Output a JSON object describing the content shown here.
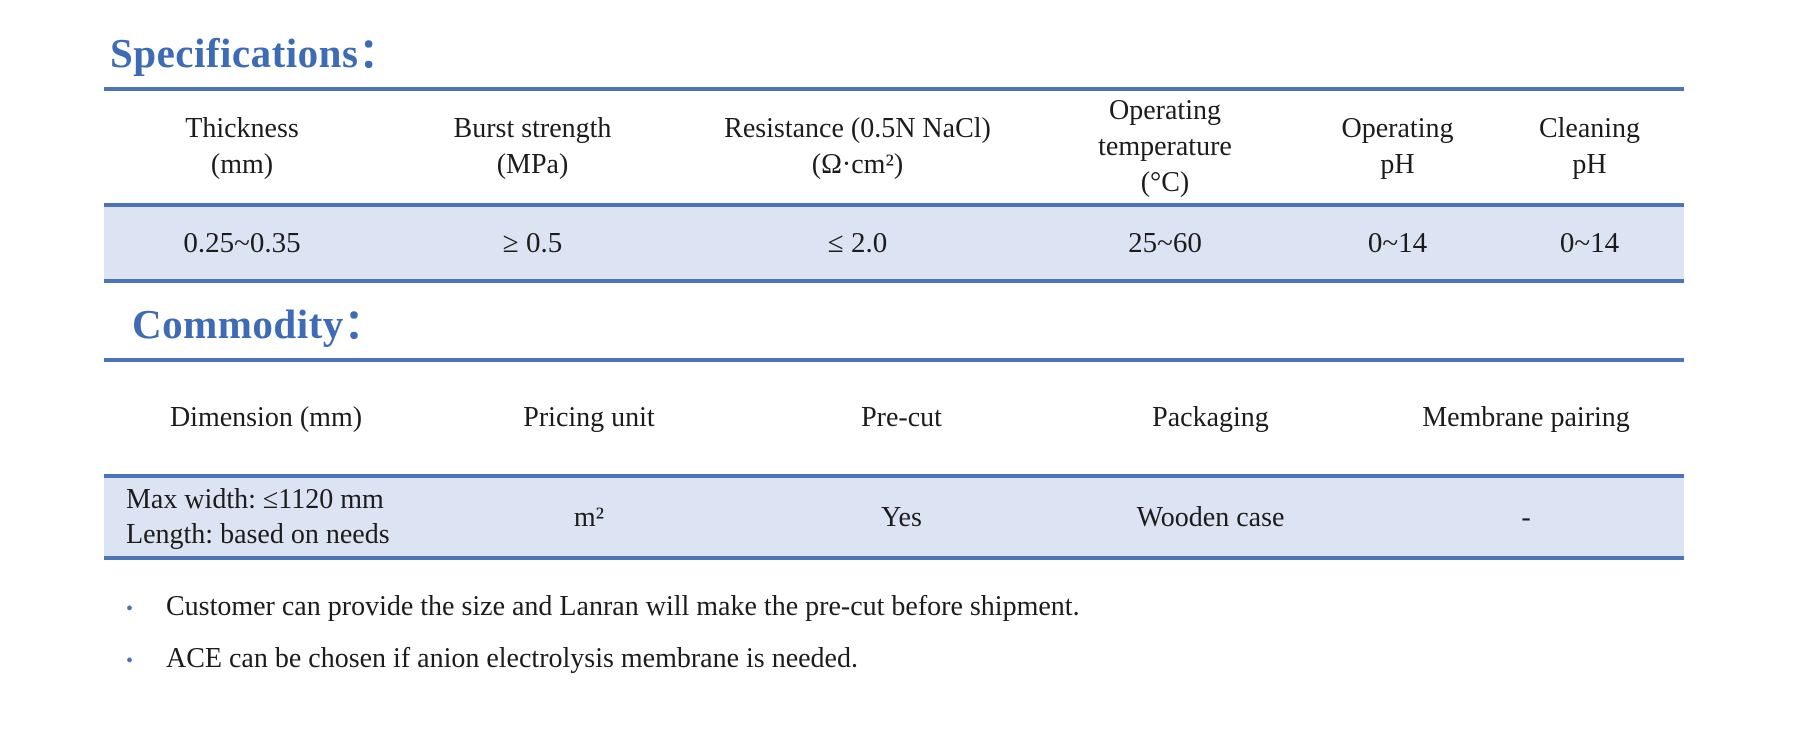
{
  "colors": {
    "accent_blue": "#3e6bb5",
    "rule_blue": "#4c74b8",
    "row_fill": "#dce3f3"
  },
  "specifications": {
    "title": "Specifications：",
    "headers": [
      "Thickness\n(mm)",
      "Burst strength\n(MPa)",
      "Resistance (0.5N NaCl)\n(Ω·cm²)",
      "Operating\ntemperature\n(°C)",
      "Operating\npH",
      "Cleaning\npH"
    ],
    "values": [
      "0.25~0.35",
      "≥ 0.5",
      "≤ 2.0",
      "25~60",
      "0~14",
      "0~14"
    ]
  },
  "commodity": {
    "title": "Commodity：",
    "headers": [
      "Dimension (mm)",
      "Pricing unit",
      "Pre-cut",
      "Packaging",
      "Membrane pairing"
    ],
    "values": [
      "Max width: ≤1120 mm\nLength: based on needs",
      "m²",
      "Yes",
      "Wooden case",
      "-"
    ]
  },
  "notes": {
    "bullet_char": "•",
    "items": [
      "Customer can provide the size and Lanran will make the pre-cut before shipment.",
      "ACE can be chosen if anion electrolysis membrane is needed."
    ]
  }
}
